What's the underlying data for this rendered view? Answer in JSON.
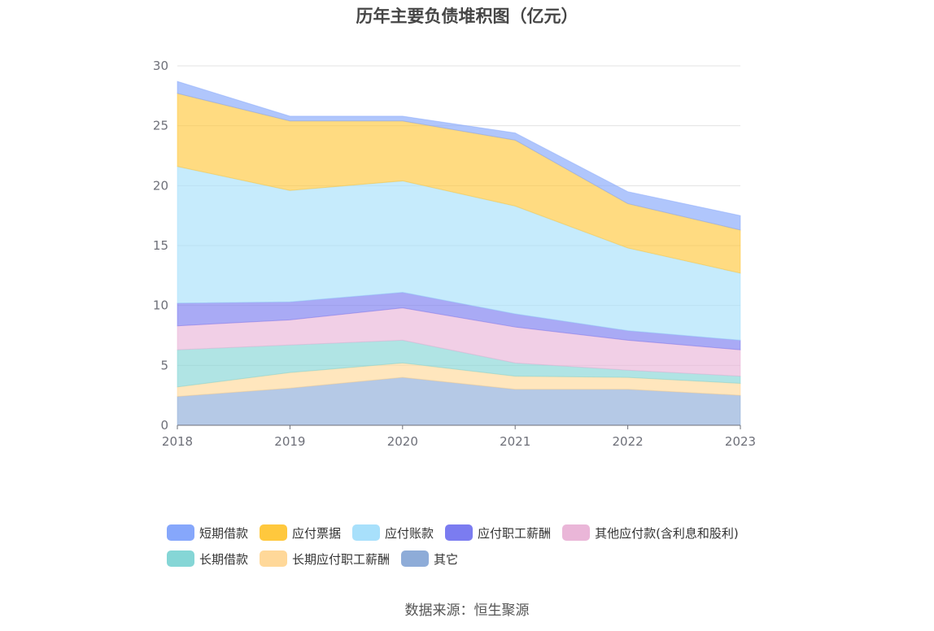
{
  "title": "历年主要负债堆积图（亿元）",
  "source": "数据来源：恒生聚源",
  "chart_data": {
    "type": "area",
    "stacked": true,
    "title": "历年主要负债堆积图（亿元）",
    "xlabel": "",
    "ylabel": "",
    "x": [
      "2018",
      "2019",
      "2020",
      "2021",
      "2022",
      "2023"
    ],
    "ylim": [
      0,
      30
    ],
    "yticks": [
      "0",
      "5",
      "10",
      "15",
      "20",
      "25",
      "30"
    ],
    "grid": true,
    "legend_position": "bottom",
    "series": [
      {
        "name": "其它",
        "color": "#8eacd8",
        "values": [
          2.4,
          3.1,
          4.0,
          3.0,
          3.0,
          2.5
        ]
      },
      {
        "name": "长期应付职工薪酬",
        "color": "#ffd899",
        "values": [
          0.8,
          1.3,
          1.2,
          1.1,
          1.0,
          1.0
        ]
      },
      {
        "name": "长期借款",
        "color": "#85d6d6",
        "values": [
          3.1,
          2.3,
          1.9,
          1.1,
          0.6,
          0.6
        ]
      },
      {
        "name": "其他应付款(含利息和股利)",
        "color": "#eab6d8",
        "values": [
          2.0,
          2.1,
          2.7,
          3.0,
          2.5,
          2.2
        ]
      },
      {
        "name": "应付职工薪酬",
        "color": "#7b7cf0",
        "values": [
          1.9,
          1.5,
          1.3,
          1.1,
          0.8,
          0.8
        ]
      },
      {
        "name": "应付账款",
        "color": "#a8e0fb",
        "values": [
          11.4,
          9.3,
          9.3,
          9.0,
          6.9,
          5.6
        ]
      },
      {
        "name": "应付票据",
        "color": "#ffc83d",
        "values": [
          6.1,
          5.8,
          5.0,
          5.5,
          3.7,
          3.6
        ]
      },
      {
        "name": "短期借款",
        "color": "#86a7fb",
        "values": [
          1.0,
          0.4,
          0.4,
          0.6,
          1.0,
          1.2
        ]
      }
    ]
  },
  "legend": {
    "rows": [
      [
        {
          "label": "短期借款",
          "color": "#86a7fb"
        },
        {
          "label": "应付票据",
          "color": "#ffc83d"
        },
        {
          "label": "应付账款",
          "color": "#a8e0fb"
        },
        {
          "label": "应付职工薪酬",
          "color": "#7b7cf0"
        },
        {
          "label": "其他应付款(含利息和股利)",
          "color": "#eab6d8"
        }
      ],
      [
        {
          "label": "长期借款",
          "color": "#85d6d6"
        },
        {
          "label": "长期应付职工薪酬",
          "color": "#ffd899"
        },
        {
          "label": "其它",
          "color": "#8eacd8"
        }
      ]
    ]
  }
}
